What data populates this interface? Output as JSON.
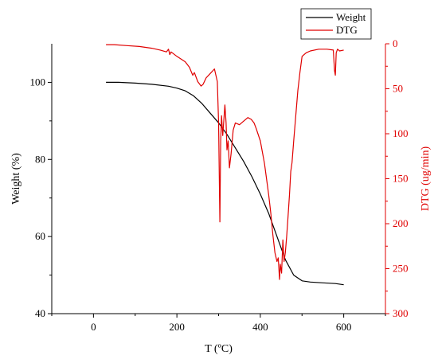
{
  "chart_data": {
    "type": "line",
    "xlabel": "T (ºC)",
    "ylabel": "Weight (%)",
    "y2label": "DTG (ug/min)",
    "xlim": [
      -100,
      700
    ],
    "ylim": [
      40,
      110
    ],
    "y2lim": [
      300,
      0
    ],
    "y2_inverted": true,
    "x_ticks": [
      0,
      200,
      400,
      600
    ],
    "y_ticks": [
      40,
      60,
      80,
      100
    ],
    "y2_ticks": [
      0,
      50,
      100,
      150,
      200,
      250,
      300
    ],
    "grid": false,
    "legend_position": "top-right",
    "series": [
      {
        "name": "Weight",
        "axis": "left",
        "color": "#000000",
        "x": [
          30,
          60,
          100,
          140,
          180,
          200,
          220,
          240,
          260,
          280,
          300,
          320,
          340,
          360,
          380,
          400,
          420,
          440,
          460,
          480,
          500,
          520,
          550,
          580,
          600
        ],
        "y": [
          100.0,
          100.0,
          99.8,
          99.5,
          99.0,
          98.5,
          97.8,
          96.5,
          94.5,
          92.0,
          89.5,
          86.5,
          83.0,
          79.5,
          75.5,
          71.0,
          66.0,
          60.0,
          54.0,
          50.0,
          48.5,
          48.2,
          48.0,
          47.8,
          47.5
        ]
      },
      {
        "name": "DTG",
        "axis": "right",
        "color": "#e00000",
        "x": [
          30,
          50,
          80,
          110,
          140,
          160,
          175,
          180,
          183,
          186,
          200,
          220,
          230,
          238,
          242,
          250,
          258,
          263,
          270,
          280,
          290,
          297,
          300,
          303,
          305,
          307,
          310,
          313,
          315,
          318,
          320,
          323,
          326,
          330,
          335,
          340,
          350,
          360,
          370,
          378,
          385,
          390,
          400,
          410,
          420,
          425,
          430,
          435,
          440,
          443,
          446,
          448,
          451,
          454,
          457,
          460,
          463,
          466,
          470,
          473,
          476,
          480,
          485,
          490,
          495,
          500,
          510,
          520,
          540,
          560,
          575,
          578,
          580,
          582,
          585,
          590,
          600
        ],
        "y": [
          1,
          1,
          2,
          3,
          5,
          7,
          9,
          6,
          12,
          9,
          14,
          20,
          26,
          35,
          32,
          42,
          47,
          45,
          38,
          33,
          28,
          42,
          88,
          198,
          108,
          80,
          102,
          82,
          68,
          88,
          118,
          108,
          138,
          122,
          96,
          88,
          90,
          86,
          82,
          84,
          88,
          94,
          108,
          133,
          168,
          188,
          212,
          232,
          242,
          238,
          262,
          245,
          255,
          218,
          242,
          232,
          215,
          196,
          168,
          142,
          132,
          108,
          80,
          52,
          32,
          14,
          10,
          8,
          6,
          6,
          7,
          30,
          35,
          10,
          6,
          8,
          7
        ]
      }
    ]
  }
}
